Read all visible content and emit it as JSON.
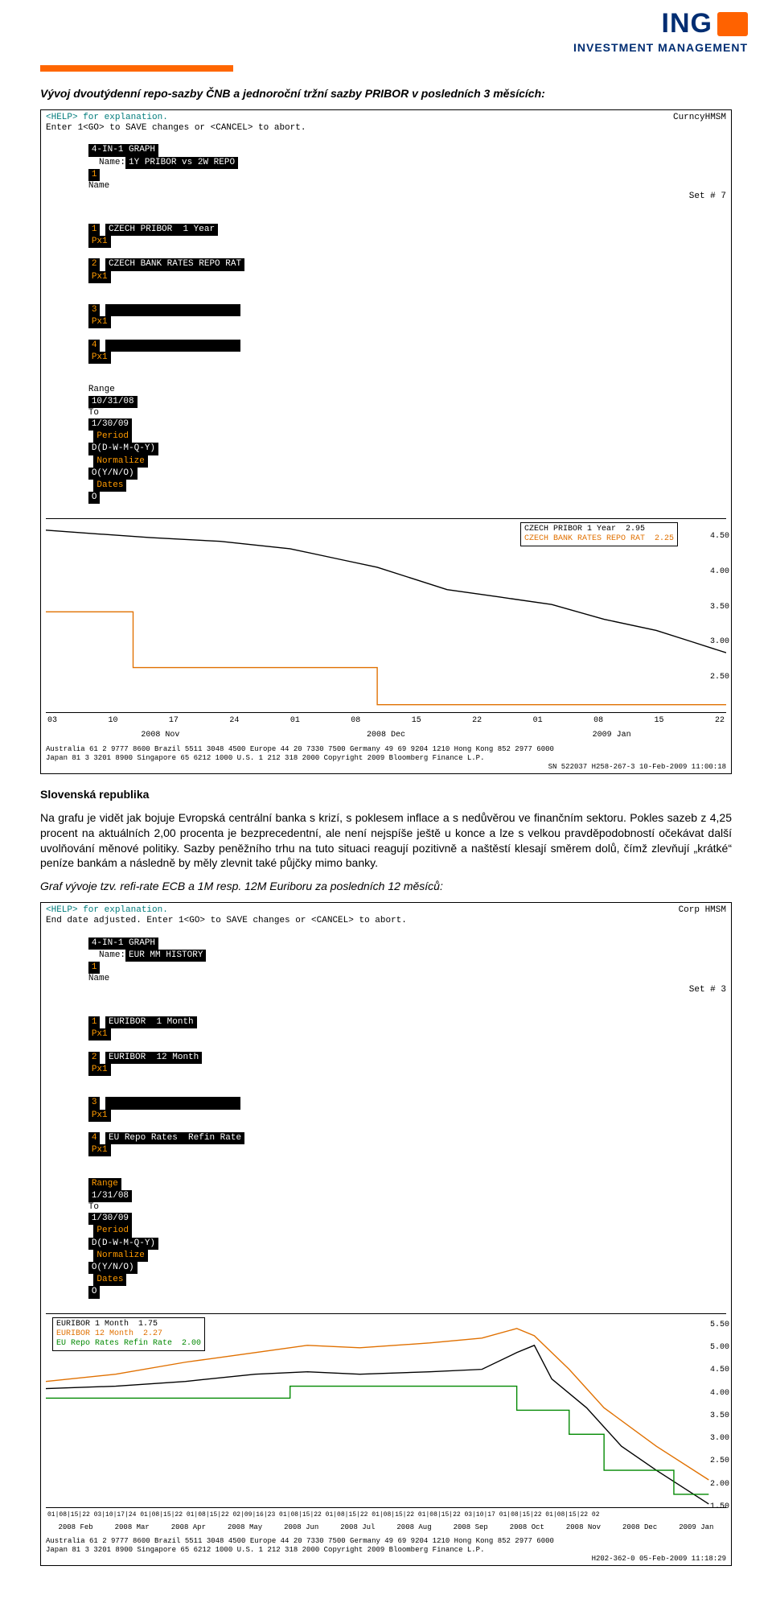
{
  "brand": {
    "name": "ING",
    "sub": "INVESTMENT MANAGEMENT",
    "primary_color": "#002d72",
    "accent_color": "#ff6200"
  },
  "intro_title": "Vývoj dvoutýdenní repo-sazby ČNB a jednoroční tržní sazby PRIBOR v posledních 3 měsících:",
  "section_title": "Slovenská republika",
  "body_text": "Na grafu je vidět jak bojuje Evropská centrální banka s krizí, s poklesem inflace a s nedůvěrou ve finančním sektoru. Pokles sazeb z 4,25 procent na aktuálních 2,00 procenta je bezprecedentní, ale není nejspíše ještě u konce a lze s velkou pravděpodobností očekávat další uvolňování měnové politiky. Sazby peněžního trhu na tuto situaci reagují pozitivně a naštěstí klesají směrem dolů, čímž zlevňují „krátké“ peníze bankám a následně by měly zlevnit také půjčky mimo banky.",
  "chart2_caption": "Graf vývoje tzv. refi-rate ECB a 1M resp. 12M Euriboru za posledních 12 měsíců:",
  "terminal1": {
    "help_line": "<HELP> for explanation.",
    "corner": "CurncyHMSM",
    "save_line": "Enter 1<GO> to SAVE changes or <CANCEL> to abort.",
    "graph_title": "4-IN-1 GRAPH",
    "name_field": "1Y PRIBOR vs 2W REPO",
    "name_label": "Name",
    "set_label": "Set # 7",
    "series_labels": {
      "s1": "CZECH PRIBOR  1 Year",
      "s2": "CZECH BANK RATES REPO RAT",
      "px": "Px1"
    },
    "range": {
      "label": "Range",
      "from": "10/31/08",
      "to_lbl": "To",
      "to": "1/30/09"
    },
    "period": {
      "label": "Period",
      "val": "D(D-W-M-Q-Y)"
    },
    "normalize": {
      "label": "Normalize",
      "val": "O(Y/N/O)"
    },
    "dates": {
      "label": "Dates",
      "val": "O"
    },
    "legend": {
      "l1": "CZECH PRIBOR  1 Year",
      "v1": "2.95",
      "l2": "CZECH BANK RATES REPO RAT",
      "v2": "2.25",
      "color1": "#000000",
      "color2": "#e07000"
    },
    "y_axis": {
      "min": 2.0,
      "max": 4.75,
      "ticks": [
        4.5,
        4.0,
        3.5,
        3.0,
        2.5
      ]
    },
    "x_ticks": [
      "03",
      "10",
      "17",
      "24",
      "01",
      "08",
      "15",
      "22",
      "01",
      "08",
      "15",
      "22"
    ],
    "x_months": [
      "2008 Nov",
      "2008 Dec",
      "2009 Jan"
    ],
    "series1_color": "#000000",
    "series2_color": "#e07000",
    "series1_points": [
      [
        0,
        4.6
      ],
      [
        60,
        4.55
      ],
      [
        120,
        4.5
      ],
      [
        200,
        4.45
      ],
      [
        280,
        4.35
      ],
      [
        340,
        4.2
      ],
      [
        380,
        4.1
      ],
      [
        420,
        3.95
      ],
      [
        460,
        3.8
      ],
      [
        520,
        3.7
      ],
      [
        580,
        3.6
      ],
      [
        640,
        3.4
      ],
      [
        700,
        3.25
      ],
      [
        740,
        3.1
      ],
      [
        780,
        2.95
      ]
    ],
    "series2_points": [
      [
        0,
        3.5
      ],
      [
        100,
        3.5
      ],
      [
        100,
        2.75
      ],
      [
        380,
        2.75
      ],
      [
        380,
        2.25
      ],
      [
        780,
        2.25
      ]
    ],
    "footer1": "Australia 61 2 9777 8600 Brazil 5511 3048 4500 Europe 44 20 7330 7500 Germany 49 69 9204 1210 Hong Kong 852 2977 6000",
    "footer2": "Japan 81 3 3201 8900      Singapore 65 6212 1000      U.S. 1 212 318 2000      Copyright 2009 Bloomberg Finance L.P.",
    "footer3": "SN 522037 H258-267-3 10-Feb-2009 11:00:18"
  },
  "terminal2": {
    "help_line": "<HELP> for explanation.",
    "corner": "Corp  HMSM",
    "save_line": "End date adjusted. Enter 1<GO> to SAVE changes or <CANCEL> to abort.",
    "graph_title": "4-IN-1 GRAPH",
    "name_field": "EUR MM HISTORY",
    "name_label": "Name",
    "set_label": "Set # 3",
    "series_labels": {
      "s1": "EURIBOR  1 Month",
      "s2": "EURIBOR  12 Month",
      "s4": "EU Repo Rates  Refin Rate",
      "px": "Px1"
    },
    "range": {
      "label": "Range",
      "from": "1/31/08",
      "to_lbl": "To",
      "to": "1/30/09"
    },
    "period": {
      "label": "Period",
      "val": "D(D-W-M-Q-Y)"
    },
    "normalize": {
      "label": "Normalize",
      "val": "O(Y/N/O)"
    },
    "dates": {
      "label": "Dates",
      "val": "O"
    },
    "legend": {
      "l1": "EURIBOR 1 Month",
      "v1": "1.75",
      "l2": "EURIBOR 12 Month",
      "v2": "2.27",
      "l3": "EU Repo Rates  Refin Rate",
      "v3": "2.00",
      "c1": "#000000",
      "c2": "#e07000",
      "c3": "#008800"
    },
    "y_axis": {
      "min": 1.5,
      "max": 5.75,
      "ticks": [
        5.5,
        5.0,
        4.5,
        4.0,
        3.5,
        3.0,
        2.5,
        2.0,
        1.5
      ]
    },
    "x_months": [
      "2008 Feb",
      "2008 Mar",
      "2008 Apr",
      "2008 May",
      "2008 Jun",
      "2008 Jul",
      "2008 Aug",
      "2008 Sep",
      "2008 Oct",
      "2008 Nov",
      "2008 Dec",
      "2009 Jan"
    ],
    "s1_color": "#000000",
    "s2_color": "#e07000",
    "s3_color": "#008800",
    "s1_points": [
      [
        0,
        4.2
      ],
      [
        80,
        4.25
      ],
      [
        160,
        4.35
      ],
      [
        240,
        4.5
      ],
      [
        300,
        4.55
      ],
      [
        360,
        4.5
      ],
      [
        440,
        4.55
      ],
      [
        500,
        4.6
      ],
      [
        540,
        4.95
      ],
      [
        560,
        5.1
      ],
      [
        580,
        4.4
      ],
      [
        620,
        3.8
      ],
      [
        660,
        3.0
      ],
      [
        700,
        2.5
      ],
      [
        760,
        1.8
      ]
    ],
    "s2_points": [
      [
        0,
        4.35
      ],
      [
        80,
        4.5
      ],
      [
        160,
        4.75
      ],
      [
        240,
        4.95
      ],
      [
        300,
        5.1
      ],
      [
        360,
        5.05
      ],
      [
        440,
        5.15
      ],
      [
        500,
        5.25
      ],
      [
        540,
        5.45
      ],
      [
        560,
        5.3
      ],
      [
        600,
        4.6
      ],
      [
        640,
        3.8
      ],
      [
        700,
        3.0
      ],
      [
        760,
        2.3
      ]
    ],
    "s3_points": [
      [
        0,
        4.0
      ],
      [
        280,
        4.0
      ],
      [
        280,
        4.25
      ],
      [
        540,
        4.25
      ],
      [
        540,
        3.75
      ],
      [
        600,
        3.75
      ],
      [
        600,
        3.25
      ],
      [
        640,
        3.25
      ],
      [
        640,
        2.5
      ],
      [
        720,
        2.5
      ],
      [
        720,
        2.0
      ],
      [
        760,
        2.0
      ]
    ],
    "x_ticks_row": "01|08|15|22  03|10|17|24  01|08|15|22  01|08|15|22  02|09|16|23  01|08|15|22  01|08|15|22  01|08|15|22  01|08|15|22  03|10|17  01|08|15|22  01|08|15|22  02",
    "footer1": "Australia 61 2 9777 8600 Brazil 5511 3048 4500 Europe 44 20 7330 7500 Germany 49 69 9204 1210 Hong Kong 852 2977 6000",
    "footer2": "Japan 81 3 3201 8900      Singapore 65 6212 1000      U.S. 1 212 318 2000      Copyright 2009 Bloomberg Finance L.P.",
    "footer3": "H202-362-0 05-Feb-2009 11:18:29"
  }
}
